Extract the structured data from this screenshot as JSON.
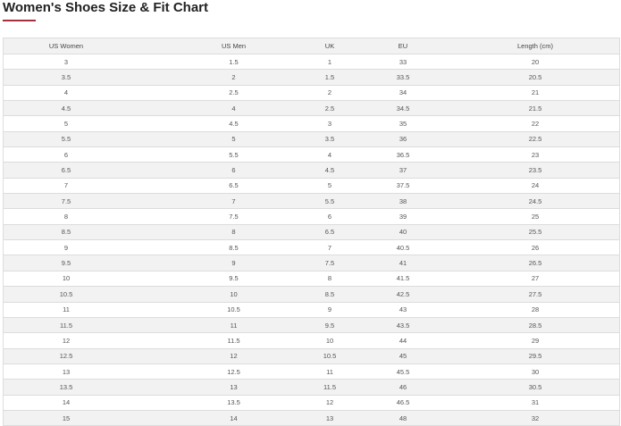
{
  "title": "Women's Shoes Size & Fit Chart",
  "accent_color": "#a3303c",
  "headers": [
    "US Women",
    "US Men",
    "UK",
    "EU",
    "Length (cm)"
  ],
  "rows": [
    [
      "3",
      "1.5",
      "1",
      "33",
      "20"
    ],
    [
      "3.5",
      "2",
      "1.5",
      "33.5",
      "20.5"
    ],
    [
      "4",
      "2.5",
      "2",
      "34",
      "21"
    ],
    [
      "4.5",
      "4",
      "2.5",
      "34.5",
      "21.5"
    ],
    [
      "5",
      "4.5",
      "3",
      "35",
      "22"
    ],
    [
      "5.5",
      "5",
      "3.5",
      "36",
      "22.5"
    ],
    [
      "6",
      "5.5",
      "4",
      "36.5",
      "23"
    ],
    [
      "6.5",
      "6",
      "4.5",
      "37",
      "23.5"
    ],
    [
      "7",
      "6.5",
      "5",
      "37.5",
      "24"
    ],
    [
      "7.5",
      "7",
      "5.5",
      "38",
      "24.5"
    ],
    [
      "8",
      "7.5",
      "6",
      "39",
      "25"
    ],
    [
      "8.5",
      "8",
      "6.5",
      "40",
      "25.5"
    ],
    [
      "9",
      "8.5",
      "7",
      "40.5",
      "26"
    ],
    [
      "9.5",
      "9",
      "7.5",
      "41",
      "26.5"
    ],
    [
      "10",
      "9.5",
      "8",
      "41.5",
      "27"
    ],
    [
      "10.5",
      "10",
      "8.5",
      "42.5",
      "27.5"
    ],
    [
      "11",
      "10.5",
      "9",
      "43",
      "28"
    ],
    [
      "11.5",
      "11",
      "9.5",
      "43.5",
      "28.5"
    ],
    [
      "12",
      "11.5",
      "10",
      "44",
      "29"
    ],
    [
      "12.5",
      "12",
      "10.5",
      "45",
      "29.5"
    ],
    [
      "13",
      "12.5",
      "11",
      "45.5",
      "30"
    ],
    [
      "13.5",
      "13",
      "11.5",
      "46",
      "30.5"
    ],
    [
      "14",
      "13.5",
      "12",
      "46.5",
      "31"
    ],
    [
      "15",
      "14",
      "13",
      "48",
      "32"
    ]
  ]
}
